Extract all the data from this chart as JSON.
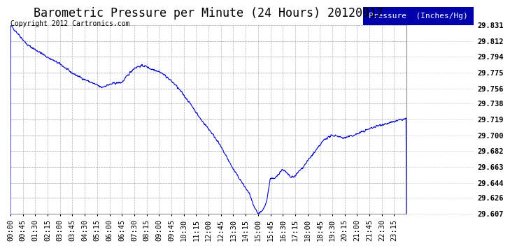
{
  "title": "Barometric Pressure per Minute (24 Hours) 20120917",
  "copyright": "Copyright 2012 Cartronics.com",
  "legend_label": "Pressure  (Inches/Hg)",
  "line_color": "#0000cc",
  "background_color": "#ffffff",
  "grid_color": "#aaaaaa",
  "ylim": [
    29.607,
    29.831
  ],
  "yticks": [
    29.607,
    29.626,
    29.644,
    29.663,
    29.682,
    29.7,
    29.719,
    29.738,
    29.756,
    29.775,
    29.794,
    29.812,
    29.831
  ],
  "xtick_labels": [
    "00:00",
    "00:45",
    "01:30",
    "02:15",
    "03:00",
    "03:45",
    "04:30",
    "05:15",
    "06:00",
    "06:45",
    "07:30",
    "08:15",
    "09:00",
    "09:45",
    "10:30",
    "11:15",
    "12:00",
    "12:45",
    "13:30",
    "14:15",
    "15:00",
    "15:45",
    "16:30",
    "17:15",
    "18:00",
    "18:45",
    "19:30",
    "20:15",
    "21:00",
    "21:45",
    "22:30",
    "23:15"
  ],
  "title_fontsize": 12,
  "tick_fontsize": 7.5,
  "legend_fontsize": 8,
  "copyright_fontsize": 7
}
